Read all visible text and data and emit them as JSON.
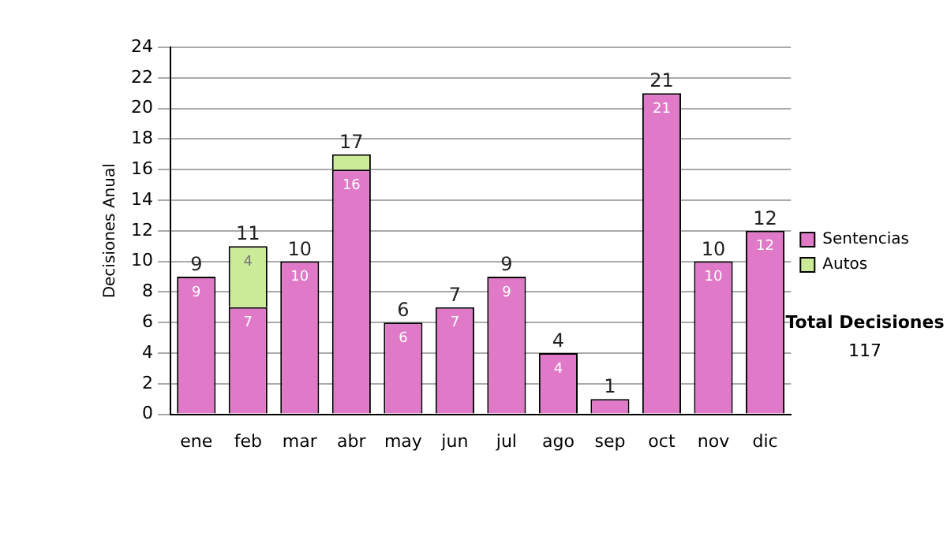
{
  "chart_data": {
    "type": "bar",
    "stacked": true,
    "ylabel": "Decisiones Anual",
    "categories": [
      "ene",
      "feb",
      "mar",
      "abr",
      "may",
      "jun",
      "jul",
      "ago",
      "sep",
      "oct",
      "nov",
      "dic"
    ],
    "series": [
      {
        "name": "Sentencias",
        "color": "#e07ac8",
        "values": [
          9,
          7,
          10,
          16,
          6,
          7,
          9,
          4,
          1,
          21,
          10,
          12
        ],
        "value_labels": [
          "9",
          "7",
          "10",
          "16",
          "6",
          "7",
          "9",
          "4",
          null,
          "21",
          "10",
          "12"
        ]
      },
      {
        "name": "Autos",
        "color": "#cceb99",
        "values": [
          0,
          4,
          0,
          1,
          0,
          0,
          0,
          0,
          0,
          0,
          0,
          0
        ],
        "value_labels": [
          null,
          "4",
          null,
          null,
          null,
          null,
          null,
          null,
          null,
          null,
          null,
          null
        ]
      }
    ],
    "totals": [
      "9",
      "11",
      "10",
      "17",
      "6",
      "7",
      "9",
      "4",
      "1",
      "21",
      "10",
      "12"
    ],
    "ylim": [
      0,
      24
    ],
    "yticks": [
      0,
      2,
      4,
      6,
      8,
      10,
      12,
      14,
      16,
      18,
      20,
      22,
      24
    ],
    "grid": "y",
    "legend": "right",
    "annotations": [
      "Total Decisiones",
      "117"
    ]
  }
}
